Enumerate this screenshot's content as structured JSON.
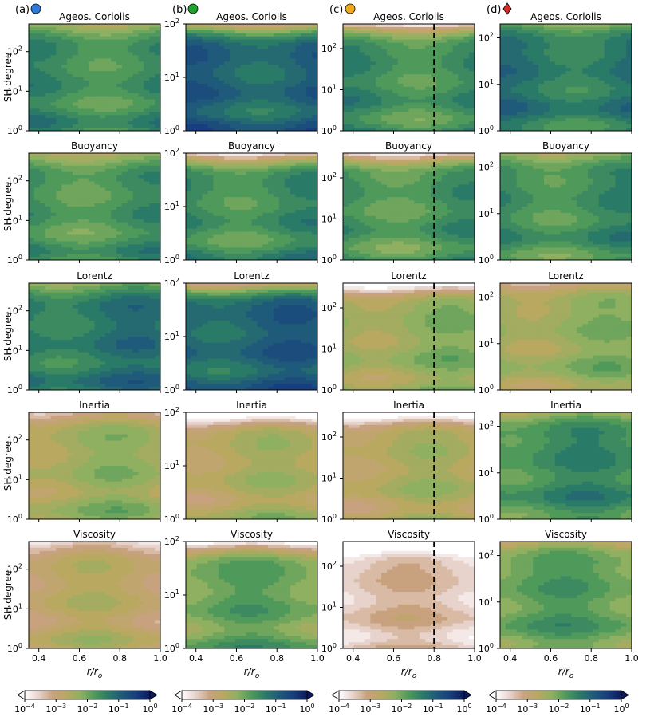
{
  "figure": {
    "panel_titles": [
      "Ageos. Coriolis",
      "Buoyancy",
      "Lorentz",
      "Inertia",
      "Viscosity"
    ],
    "column_labels": [
      "(a)",
      "(b)",
      "(c)",
      "(d)"
    ],
    "column_markers": [
      {
        "shape": "circle",
        "color": "#2e7bd6"
      },
      {
        "shape": "circle",
        "color": "#1fa32e"
      },
      {
        "shape": "circle",
        "color": "#f0a81f"
      },
      {
        "shape": "diamond",
        "color": "#d62828"
      }
    ],
    "ylabel": "SH degree",
    "xlabel_base": "r/r",
    "xlabel_sub": "o",
    "colorbar_ticks": [
      "10",
      "10",
      "10",
      "10",
      "10"
    ],
    "colorbar_exponents": [
      "−4",
      "−3",
      "−2",
      "−1",
      "0"
    ],
    "colorbar_exponent_values": [
      -4,
      -3,
      -2,
      -1,
      0
    ],
    "colormap": [
      "#ffffff",
      "#e8d2cc",
      "#c8a27e",
      "#b8a860",
      "#8eb060",
      "#4f9a5a",
      "#2a7a68",
      "#1f5a7a",
      "#173e7e",
      "#0b1a5e"
    ],
    "vline_color": "#000000"
  },
  "chart_data": {
    "type": "heatmap",
    "title": "",
    "xlabel": "r/r_o",
    "ylabel": "SH degree",
    "xlim": [
      0.35,
      1.0
    ],
    "xticks": [
      0.4,
      0.6,
      0.8,
      1.0
    ],
    "xtick_labels": [
      "0.4",
      "0.6",
      "0.8",
      "1.0"
    ],
    "ytick_labels": [
      "10",
      "10",
      "10"
    ],
    "ytick_exponents": [
      "0",
      "1",
      "2"
    ],
    "colorbar": {
      "scale": "log",
      "range": [
        0.0001,
        1
      ],
      "extend": "both"
    },
    "columns": [
      {
        "label": "(a)",
        "ylim": [
          1,
          500
        ],
        "dashed_vline_r": null,
        "panels": [
          {
            "title": "Ageos. Coriolis",
            "mean_log10": -1.6
          },
          {
            "title": "Buoyancy",
            "mean_log10": -1.7
          },
          {
            "title": "Lorentz",
            "mean_log10": -1.3
          },
          {
            "title": "Inertia",
            "mean_log10": -2.4
          },
          {
            "title": "Viscosity",
            "mean_log10": -2.8
          }
        ]
      },
      {
        "label": "(b)",
        "ylim": [
          1,
          100
        ],
        "dashed_vline_r": null,
        "panels": [
          {
            "title": "Ageos. Coriolis",
            "mean_log10": -1.0
          },
          {
            "title": "Buoyancy",
            "mean_log10": -1.6
          },
          {
            "title": "Lorentz",
            "mean_log10": -1.0
          },
          {
            "title": "Inertia",
            "mean_log10": -2.6
          },
          {
            "title": "Viscosity",
            "mean_log10": -2.0
          }
        ]
      },
      {
        "label": "(c)",
        "ylim": [
          1,
          400
        ],
        "dashed_vline_r": 0.8,
        "panels": [
          {
            "title": "Ageos. Coriolis",
            "mean_log10": -1.6
          },
          {
            "title": "Buoyancy",
            "mean_log10": -1.7
          },
          {
            "title": "Lorentz",
            "mean_log10": -2.3
          },
          {
            "title": "Inertia",
            "mean_log10": -2.6
          },
          {
            "title": "Viscosity",
            "mean_log10": -3.4
          }
        ]
      },
      {
        "label": "(d)",
        "ylim": [
          1,
          200
        ],
        "dashed_vline_r": null,
        "panels": [
          {
            "title": "Ageos. Coriolis",
            "mean_log10": -1.3
          },
          {
            "title": "Buoyancy",
            "mean_log10": -1.6
          },
          {
            "title": "Lorentz",
            "mean_log10": -2.3
          },
          {
            "title": "Inertia",
            "mean_log10": -1.6
          },
          {
            "title": "Viscosity",
            "mean_log10": -1.9
          }
        ]
      }
    ]
  }
}
